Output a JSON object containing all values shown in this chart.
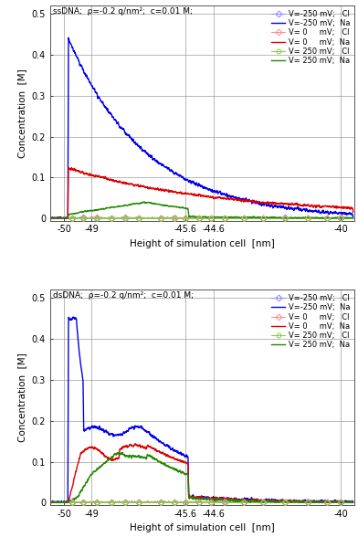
{
  "top_title": "ssDNA;  ρ=-0.2 q/nm²;  c=0.01 M;",
  "bottom_title": "dsDNA;  ρ=-0.2 q/nm²;  c=0.01 M;",
  "xlabel": "Height of simulation cell  [nm]",
  "ylabel": "Concentration  [M]",
  "xlim": [
    -50.5,
    -39.5
  ],
  "ylim": [
    -0.005,
    0.52
  ],
  "xticks": [
    -50,
    -49,
    -45.6,
    -44.6,
    -40
  ],
  "yticks": [
    0.0,
    0.1,
    0.2,
    0.3,
    0.4,
    0.5
  ],
  "vlines": [
    -50,
    -49,
    -45.6,
    -44.6,
    -40
  ],
  "legend_entries": [
    "V=-250 mV;   Cl",
    "V=-250 mV;  Na",
    "V= 0     mV;   Cl",
    "V= 0     mV;  Na",
    "V= 250 mV;   Cl",
    "V= 250 mV;  Na"
  ],
  "colors": {
    "v_neg250_cl": "#8888ff",
    "v_neg250_na": "#0000ee",
    "v_0_cl": "#ff8888",
    "v_0_na": "#dd0000",
    "v_250_cl": "#88cc44",
    "v_250_na": "#228800"
  },
  "background_color": "#ffffff",
  "grid_color": "#999999"
}
